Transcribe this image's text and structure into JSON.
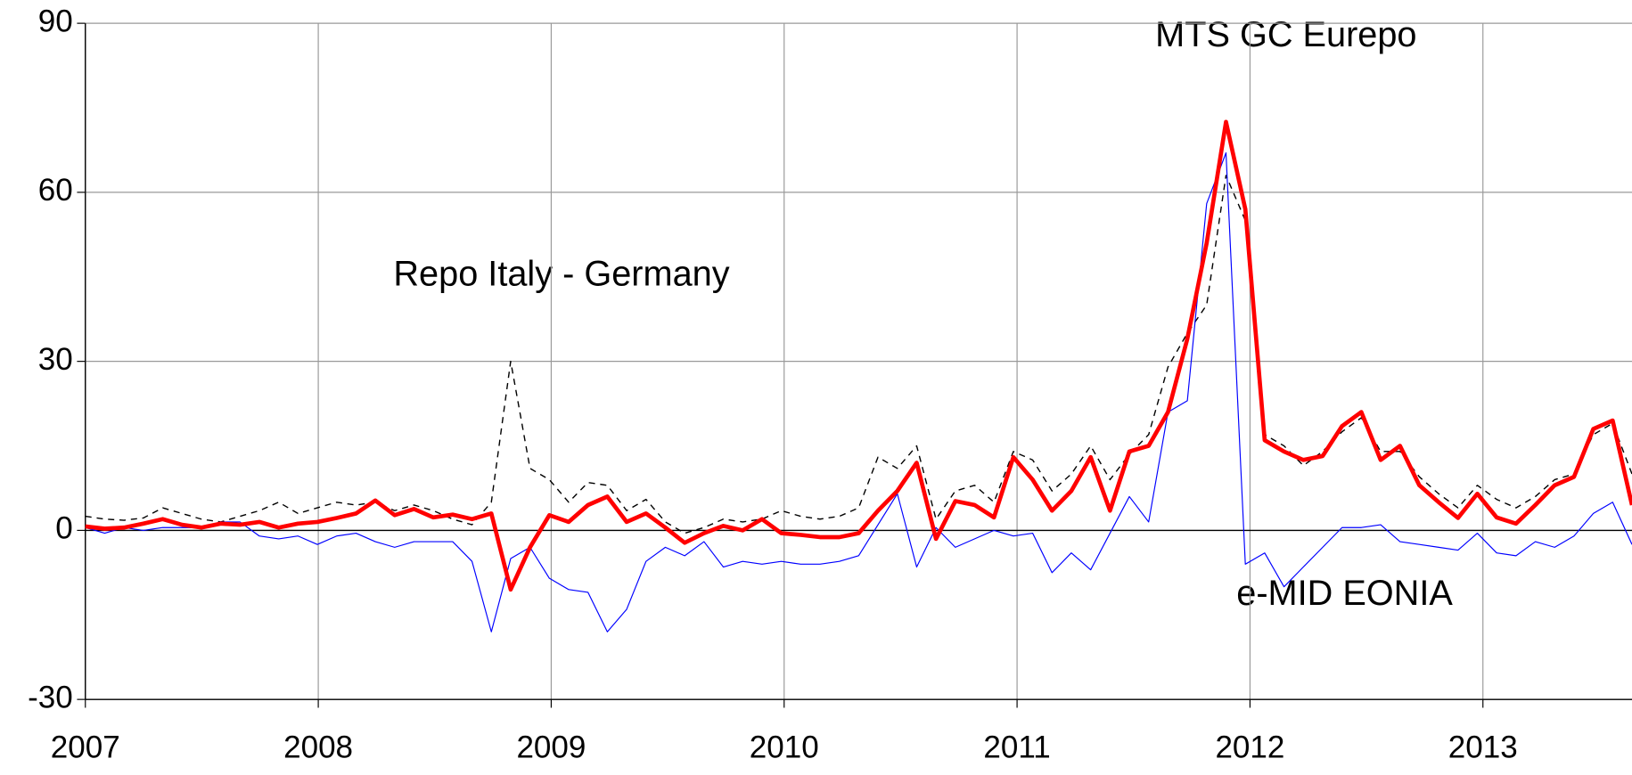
{
  "chart_data": {
    "type": "line",
    "x": [
      2007,
      2007.083,
      2007.166,
      2007.249,
      2007.332,
      2007.415,
      2007.498,
      2007.581,
      2007.664,
      2007.747,
      2007.83,
      2007.913,
      2007.996,
      2008.079,
      2008.162,
      2008.245,
      2008.328,
      2008.411,
      2008.494,
      2008.577,
      2008.66,
      2008.743,
      2008.826,
      2008.909,
      2008.992,
      2009.075,
      2009.158,
      2009.241,
      2009.324,
      2009.407,
      2009.49,
      2009.573,
      2009.656,
      2009.739,
      2009.822,
      2009.905,
      2009.988,
      2010.071,
      2010.154,
      2010.237,
      2010.32,
      2010.403,
      2010.486,
      2010.569,
      2010.652,
      2010.735,
      2010.818,
      2010.901,
      2010.984,
      2011.067,
      2011.15,
      2011.233,
      2011.316,
      2011.399,
      2011.482,
      2011.565,
      2011.648,
      2011.731,
      2011.814,
      2011.897,
      2011.98,
      2012.063,
      2012.146,
      2012.229,
      2012.312,
      2012.395,
      2012.478,
      2012.561,
      2012.644,
      2012.727,
      2012.81,
      2012.893,
      2012.976,
      2013.059,
      2013.142,
      2013.225,
      2013.308,
      2013.391,
      2013.474,
      2013.557,
      2013.64
    ],
    "series": [
      {
        "name": "MTS GC Eurepo",
        "color": "#000000",
        "dashed": true,
        "values": [
          2.5,
          2,
          1.8,
          2.2,
          4,
          3,
          2,
          1.5,
          2.5,
          3.5,
          5,
          3,
          4,
          5,
          4.5,
          5,
          3.5,
          4.5,
          3.5,
          2,
          1,
          5,
          30,
          11,
          9,
          5,
          8.5,
          8,
          3.5,
          5.5,
          1.5,
          -0.5,
          0.5,
          2,
          1.5,
          2,
          3.5,
          2.5,
          2,
          2.5,
          4,
          13,
          11,
          15,
          2,
          7,
          8,
          5,
          14,
          12.5,
          7,
          10,
          15,
          9,
          13.5,
          17,
          29,
          35,
          40,
          63,
          55,
          17,
          15,
          11.5,
          14,
          17.5,
          20,
          14,
          14,
          9.5,
          6.5,
          4,
          8,
          5.5,
          4,
          6,
          9,
          10,
          17,
          19,
          10
        ]
      },
      {
        "name": "e-MID EONIA",
        "color": "#0000ff",
        "values": [
          0.5,
          -0.5,
          0.5,
          0,
          0.5,
          0.5,
          0.5,
          1.5,
          1.5,
          -1,
          -1.5,
          -1,
          -2.5,
          -1,
          -0.5,
          -2,
          -3,
          -2,
          -2,
          -2,
          -5.5,
          -18,
          -5,
          -3,
          -8.5,
          -10.5,
          -11,
          -18,
          -14,
          -5.5,
          -3,
          -4.5,
          -2,
          -6.5,
          -5.5,
          -6,
          -5.5,
          -6,
          -6,
          -5.5,
          -4.5,
          1,
          6.5,
          -6.5,
          0.5,
          -3,
          -1.5,
          0,
          -1,
          -0.5,
          -7.5,
          -4,
          -7,
          -0.5,
          6,
          1.5,
          21,
          23,
          58,
          67,
          -6,
          -4,
          -10,
          -6.5,
          -3,
          0.5,
          0.5,
          1,
          -2,
          -2.5,
          -3,
          -3.5,
          -0.5,
          -4,
          -4.5,
          -2,
          -3,
          -1,
          3,
          5,
          -2.5
        ]
      },
      {
        "name": "Repo Italy - Germany",
        "color": "#ff0000",
        "values": [
          0.7,
          0.3,
          0.5,
          1.2,
          2,
          1,
          0.5,
          1.2,
          1,
          1.5,
          0.5,
          1.2,
          1.5,
          2.2,
          3,
          5.3,
          2.7,
          3.8,
          2.3,
          2.8,
          2,
          3,
          -10.5,
          -3,
          2.7,
          1.5,
          4.5,
          6,
          1.5,
          3,
          0.5,
          -2.2,
          -0.5,
          0.8,
          0,
          2,
          -0.5,
          -0.8,
          -1.2,
          -1.2,
          -0.5,
          3.5,
          7,
          12,
          -1.5,
          5.2,
          4.5,
          2.3,
          13,
          9,
          3.5,
          7,
          13,
          3.5,
          14,
          15,
          21,
          34,
          51,
          72.5,
          57,
          16,
          14,
          12.5,
          13.2,
          18.5,
          21,
          12.5,
          15,
          8,
          5,
          2.2,
          6.5,
          2.3,
          1.2,
          4.5,
          8,
          9.5,
          18,
          19.5,
          4.5
        ]
      }
    ],
    "xlim": [
      2007,
      2013.64
    ],
    "xticks": [
      2007,
      2008,
      2009,
      2010,
      2011,
      2012,
      2013
    ],
    "ylim": [
      -30,
      90
    ],
    "yticks": [
      -30,
      0,
      30,
      60,
      90
    ],
    "grid": true
  }
}
